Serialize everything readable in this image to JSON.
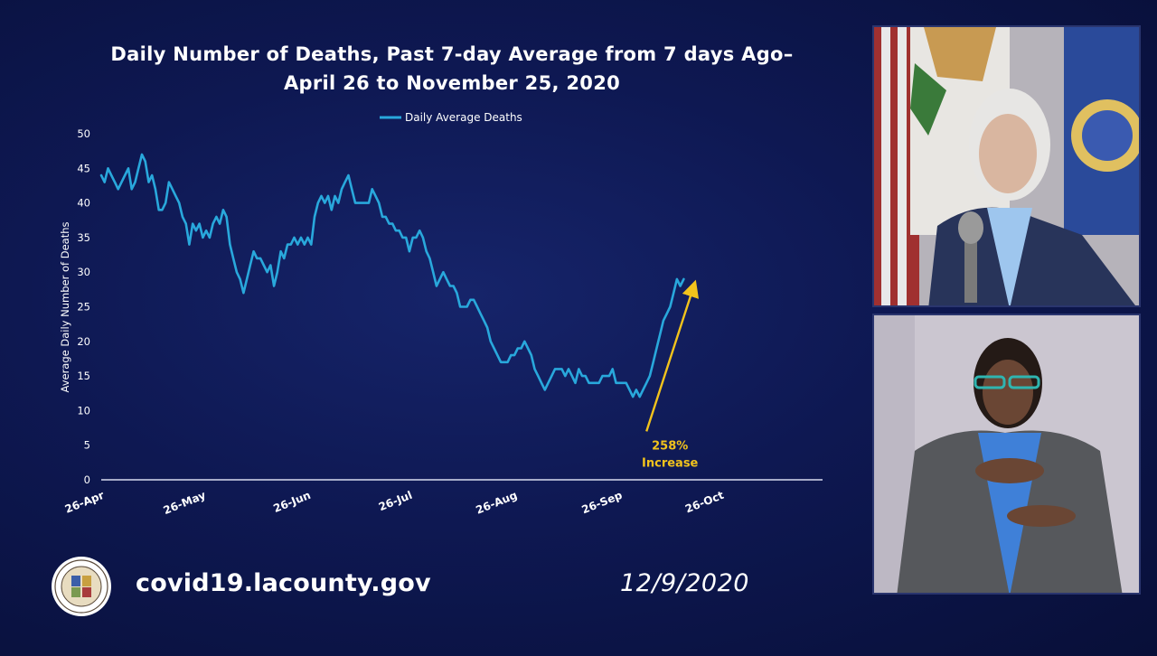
{
  "chart_data": {
    "type": "line",
    "title_line1": "Daily Number of Deaths, Past 7-day Average from 7 days Ago–",
    "title_line2": "April 26 to November 25, 2020",
    "ylabel": "Average Daily Number of Deaths",
    "xlabel": "",
    "ylim": [
      0,
      50
    ],
    "yticks": [
      0,
      5,
      10,
      15,
      20,
      25,
      30,
      35,
      40,
      45,
      50
    ],
    "start_date": "2020-04-26",
    "xticks": [
      {
        "label": "26-Apr",
        "date": "2020-04-26"
      },
      {
        "label": "26-May",
        "date": "2020-05-26"
      },
      {
        "label": "26-Jun",
        "date": "2020-06-26"
      },
      {
        "label": "26-Jul",
        "date": "2020-07-26"
      },
      {
        "label": "26-Aug",
        "date": "2020-08-26"
      },
      {
        "label": "26-Sep",
        "date": "2020-09-26"
      },
      {
        "label": "26-Oct",
        "date": "2020-10-26"
      }
    ],
    "x_end": "2020-11-25",
    "legend": "top-center",
    "grid": false,
    "series": [
      {
        "name": "Daily Average Deaths",
        "color": "#29a8dc",
        "points": [
          [
            "2020-04-26",
            44
          ],
          [
            "2020-04-27",
            43
          ],
          [
            "2020-04-28",
            45
          ],
          [
            "2020-04-29",
            44
          ],
          [
            "2020-04-30",
            43
          ],
          [
            "2020-05-01",
            42
          ],
          [
            "2020-05-02",
            43
          ],
          [
            "2020-05-03",
            44
          ],
          [
            "2020-05-04",
            45
          ],
          [
            "2020-05-05",
            42
          ],
          [
            "2020-05-06",
            43
          ],
          [
            "2020-05-07",
            45
          ],
          [
            "2020-05-08",
            47
          ],
          [
            "2020-05-09",
            46
          ],
          [
            "2020-05-10",
            43
          ],
          [
            "2020-05-11",
            44
          ],
          [
            "2020-05-12",
            42
          ],
          [
            "2020-05-13",
            39
          ],
          [
            "2020-05-14",
            39
          ],
          [
            "2020-05-15",
            40
          ],
          [
            "2020-05-16",
            43
          ],
          [
            "2020-05-17",
            42
          ],
          [
            "2020-05-18",
            41
          ],
          [
            "2020-05-19",
            40
          ],
          [
            "2020-05-20",
            38
          ],
          [
            "2020-05-21",
            37
          ],
          [
            "2020-05-22",
            34
          ],
          [
            "2020-05-23",
            37
          ],
          [
            "2020-05-24",
            36
          ],
          [
            "2020-05-25",
            37
          ],
          [
            "2020-05-26",
            35
          ],
          [
            "2020-05-27",
            36
          ],
          [
            "2020-05-28",
            35
          ],
          [
            "2020-05-29",
            37
          ],
          [
            "2020-05-30",
            38
          ],
          [
            "2020-05-31",
            37
          ],
          [
            "2020-06-01",
            39
          ],
          [
            "2020-06-02",
            38
          ],
          [
            "2020-06-03",
            34
          ],
          [
            "2020-06-04",
            32
          ],
          [
            "2020-06-05",
            30
          ],
          [
            "2020-06-06",
            29
          ],
          [
            "2020-06-07",
            27
          ],
          [
            "2020-06-08",
            29
          ],
          [
            "2020-06-09",
            31
          ],
          [
            "2020-06-10",
            33
          ],
          [
            "2020-06-11",
            32
          ],
          [
            "2020-06-12",
            32
          ],
          [
            "2020-06-13",
            31
          ],
          [
            "2020-06-14",
            30
          ],
          [
            "2020-06-15",
            31
          ],
          [
            "2020-06-16",
            28
          ],
          [
            "2020-06-17",
            30
          ],
          [
            "2020-06-18",
            33
          ],
          [
            "2020-06-19",
            32
          ],
          [
            "2020-06-20",
            34
          ],
          [
            "2020-06-21",
            34
          ],
          [
            "2020-06-22",
            35
          ],
          [
            "2020-06-23",
            34
          ],
          [
            "2020-06-24",
            35
          ],
          [
            "2020-06-25",
            34
          ],
          [
            "2020-06-26",
            35
          ],
          [
            "2020-06-27",
            34
          ],
          [
            "2020-06-28",
            38
          ],
          [
            "2020-06-29",
            40
          ],
          [
            "2020-06-30",
            41
          ],
          [
            "2020-07-01",
            40
          ],
          [
            "2020-07-02",
            41
          ],
          [
            "2020-07-03",
            39
          ],
          [
            "2020-07-04",
            41
          ],
          [
            "2020-07-05",
            40
          ],
          [
            "2020-07-06",
            42
          ],
          [
            "2020-07-07",
            43
          ],
          [
            "2020-07-08",
            44
          ],
          [
            "2020-07-09",
            42
          ],
          [
            "2020-07-10",
            40
          ],
          [
            "2020-07-11",
            40
          ],
          [
            "2020-07-12",
            40
          ],
          [
            "2020-07-13",
            40
          ],
          [
            "2020-07-14",
            40
          ],
          [
            "2020-07-15",
            42
          ],
          [
            "2020-07-16",
            41
          ],
          [
            "2020-07-17",
            40
          ],
          [
            "2020-07-18",
            38
          ],
          [
            "2020-07-19",
            38
          ],
          [
            "2020-07-20",
            37
          ],
          [
            "2020-07-21",
            37
          ],
          [
            "2020-07-22",
            36
          ],
          [
            "2020-07-23",
            36
          ],
          [
            "2020-07-24",
            35
          ],
          [
            "2020-07-25",
            35
          ],
          [
            "2020-07-26",
            33
          ],
          [
            "2020-07-27",
            35
          ],
          [
            "2020-07-28",
            35
          ],
          [
            "2020-07-29",
            36
          ],
          [
            "2020-07-30",
            35
          ],
          [
            "2020-07-31",
            33
          ],
          [
            "2020-08-01",
            32
          ],
          [
            "2020-08-02",
            30
          ],
          [
            "2020-08-03",
            28
          ],
          [
            "2020-08-04",
            29
          ],
          [
            "2020-08-05",
            30
          ],
          [
            "2020-08-06",
            29
          ],
          [
            "2020-08-07",
            28
          ],
          [
            "2020-08-08",
            28
          ],
          [
            "2020-08-09",
            27
          ],
          [
            "2020-08-10",
            25
          ],
          [
            "2020-08-11",
            25
          ],
          [
            "2020-08-12",
            25
          ],
          [
            "2020-08-13",
            26
          ],
          [
            "2020-08-14",
            26
          ],
          [
            "2020-08-15",
            25
          ],
          [
            "2020-08-16",
            24
          ],
          [
            "2020-08-17",
            23
          ],
          [
            "2020-08-18",
            22
          ],
          [
            "2020-08-19",
            20
          ],
          [
            "2020-08-20",
            19
          ],
          [
            "2020-08-21",
            18
          ],
          [
            "2020-08-22",
            17
          ],
          [
            "2020-08-23",
            17
          ],
          [
            "2020-08-24",
            17
          ],
          [
            "2020-08-25",
            18
          ],
          [
            "2020-08-26",
            18
          ],
          [
            "2020-08-27",
            19
          ],
          [
            "2020-08-28",
            19
          ],
          [
            "2020-08-29",
            20
          ],
          [
            "2020-08-30",
            19
          ],
          [
            "2020-08-31",
            18
          ],
          [
            "2020-09-01",
            16
          ],
          [
            "2020-09-02",
            15
          ],
          [
            "2020-09-03",
            14
          ],
          [
            "2020-09-04",
            13
          ],
          [
            "2020-09-05",
            14
          ],
          [
            "2020-09-06",
            15
          ],
          [
            "2020-09-07",
            16
          ],
          [
            "2020-09-08",
            16
          ],
          [
            "2020-09-09",
            16
          ],
          [
            "2020-09-10",
            15
          ],
          [
            "2020-09-11",
            16
          ],
          [
            "2020-09-12",
            15
          ],
          [
            "2020-09-13",
            14
          ],
          [
            "2020-09-14",
            16
          ],
          [
            "2020-09-15",
            15
          ],
          [
            "2020-09-16",
            15
          ],
          [
            "2020-09-17",
            14
          ],
          [
            "2020-09-18",
            14
          ],
          [
            "2020-09-19",
            14
          ],
          [
            "2020-09-20",
            14
          ],
          [
            "2020-09-21",
            15
          ],
          [
            "2020-09-22",
            15
          ],
          [
            "2020-09-23",
            15
          ],
          [
            "2020-09-24",
            16
          ],
          [
            "2020-09-25",
            14
          ],
          [
            "2020-09-26",
            14
          ],
          [
            "2020-09-27",
            14
          ],
          [
            "2020-09-28",
            14
          ],
          [
            "2020-09-29",
            13
          ],
          [
            "2020-09-30",
            12
          ],
          [
            "2020-10-01",
            13
          ],
          [
            "2020-10-02",
            12
          ],
          [
            "2020-10-03",
            13
          ],
          [
            "2020-10-04",
            14
          ],
          [
            "2020-10-05",
            15
          ],
          [
            "2020-10-06",
            17
          ],
          [
            "2020-10-07",
            19
          ],
          [
            "2020-10-08",
            21
          ],
          [
            "2020-10-09",
            23
          ],
          [
            "2020-10-10",
            24
          ],
          [
            "2020-10-11",
            25
          ],
          [
            "2020-10-12",
            27
          ],
          [
            "2020-10-13",
            29
          ],
          [
            "2020-10-14",
            28
          ],
          [
            "2020-10-15",
            29
          ]
        ]
      }
    ],
    "annotation": {
      "line1": "258%",
      "line2": "Increase",
      "color": "#f2c31c",
      "arrow_from": [
        "2020-10-04",
        7
      ],
      "arrow_to": [
        "2020-10-18",
        28
      ]
    }
  },
  "footer": {
    "url": "covid19.lacounty.gov",
    "date": "12/9/2020",
    "seal_icon": "county-of-los-angeles-seal-icon"
  },
  "video": {
    "speaker_feed": "speaker-video-feed",
    "interpreter_feed": "sign-language-interpreter-feed"
  }
}
